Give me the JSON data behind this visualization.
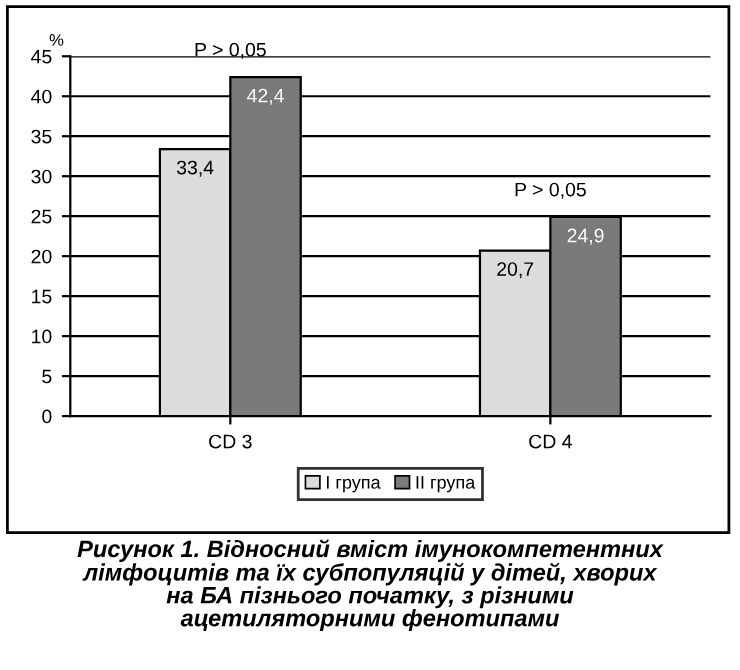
{
  "chart_data": {
    "type": "bar",
    "title": "Рисунок 1. Відносний вміст імунокомпетентних\nлімфоцитів та їх субпопуляцій у дітей, хворих\nна БА пізнього початку, з різними\nацетиляторними фенотипами",
    "ylabel": "%",
    "categories": [
      "CD 3",
      "CD 4"
    ],
    "series": [
      {
        "name": "I група",
        "color": "#dcdcdc",
        "values": [
          33.4,
          20.7
        ],
        "value_labels": [
          "33,4",
          "20,7"
        ]
      },
      {
        "name": "II група",
        "color": "#7a7a7a",
        "values": [
          42.4,
          24.9
        ],
        "value_labels": [
          "42,4",
          "24,9"
        ]
      }
    ],
    "annotations": [
      "P > 0,05",
      "P > 0,05"
    ],
    "ylim": [
      0,
      45
    ],
    "yticks": [
      0,
      5,
      10,
      15,
      20,
      25,
      30,
      35,
      40,
      45
    ],
    "grid": "y",
    "legend": "bottom"
  }
}
